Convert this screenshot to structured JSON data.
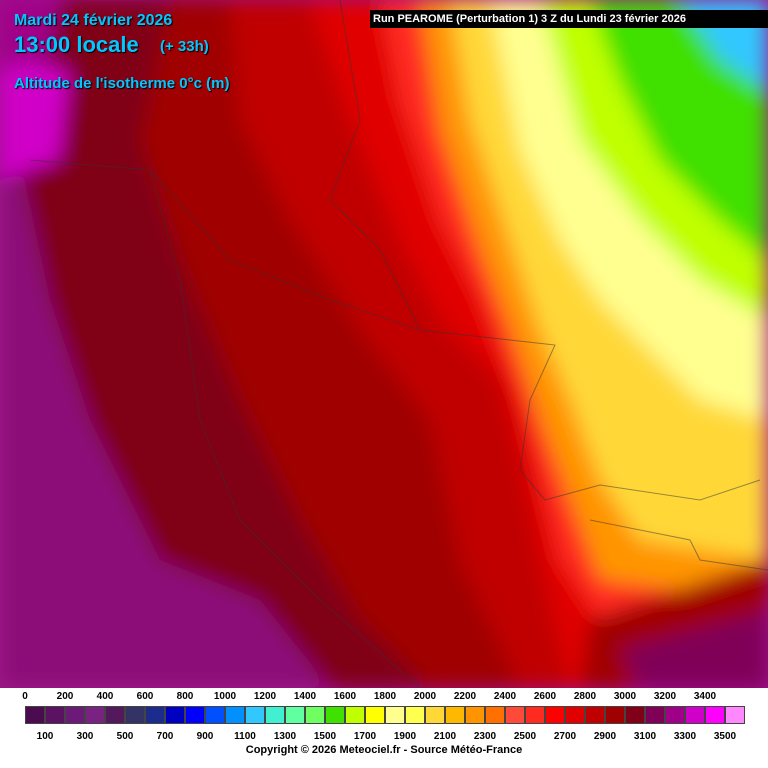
{
  "header": {
    "date": "Mardi 24 février 2026",
    "time": "13:00 locale",
    "lead": "(+ 33h)",
    "parameter": "Altitude de l'isotherme 0°c (m)",
    "run": "Run PEAROME (Perturbation 1) 3 Z du Lundi 23 février 2026"
  },
  "legend": {
    "levels": [
      {
        "value": 0,
        "color": "#4a0c4e"
      },
      {
        "value": 100,
        "color": "#5c1262"
      },
      {
        "value": 200,
        "color": "#6c1a78"
      },
      {
        "value": 300,
        "color": "#7a2282"
      },
      {
        "value": 400,
        "color": "#54185c"
      },
      {
        "value": 500,
        "color": "#333366"
      },
      {
        "value": 600,
        "color": "#1c2c8c"
      },
      {
        "value": 700,
        "color": "#0000c0"
      },
      {
        "value": 800,
        "color": "#0000ff"
      },
      {
        "value": 900,
        "color": "#0050ff"
      },
      {
        "value": 1000,
        "color": "#0090ff"
      },
      {
        "value": 1100,
        "color": "#30c8ff"
      },
      {
        "value": 1200,
        "color": "#40f0d0"
      },
      {
        "value": 1300,
        "color": "#60ffa0"
      },
      {
        "value": 1400,
        "color": "#70ff60"
      },
      {
        "value": 1500,
        "color": "#40e000"
      },
      {
        "value": 1600,
        "color": "#c0ff00"
      },
      {
        "value": 1700,
        "color": "#ffff00"
      },
      {
        "value": 1800,
        "color": "#ffff90"
      },
      {
        "value": 1900,
        "color": "#ffff50"
      },
      {
        "value": 2000,
        "color": "#ffd838"
      },
      {
        "value": 2100,
        "color": "#ffb800"
      },
      {
        "value": 2200,
        "color": "#ff9400"
      },
      {
        "value": 2300,
        "color": "#ff7000"
      },
      {
        "value": 2400,
        "color": "#ff4a3a"
      },
      {
        "value": 2500,
        "color": "#ff2a20"
      },
      {
        "value": 2600,
        "color": "#ff0000"
      },
      {
        "value": 2700,
        "color": "#e00000"
      },
      {
        "value": 2800,
        "color": "#c00000"
      },
      {
        "value": 2900,
        "color": "#a00000"
      },
      {
        "value": 3000,
        "color": "#800018"
      },
      {
        "value": 3100,
        "color": "#800058"
      },
      {
        "value": 3200,
        "color": "#a00088"
      },
      {
        "value": 3300,
        "color": "#d000c8"
      },
      {
        "value": 3400,
        "color": "#ff00ff"
      },
      {
        "value": 3500,
        "color": "#ff88ff"
      }
    ]
  },
  "footer": {
    "copyright": "Copyright © 2026 Meteociel.fr - Source Météo-France"
  }
}
